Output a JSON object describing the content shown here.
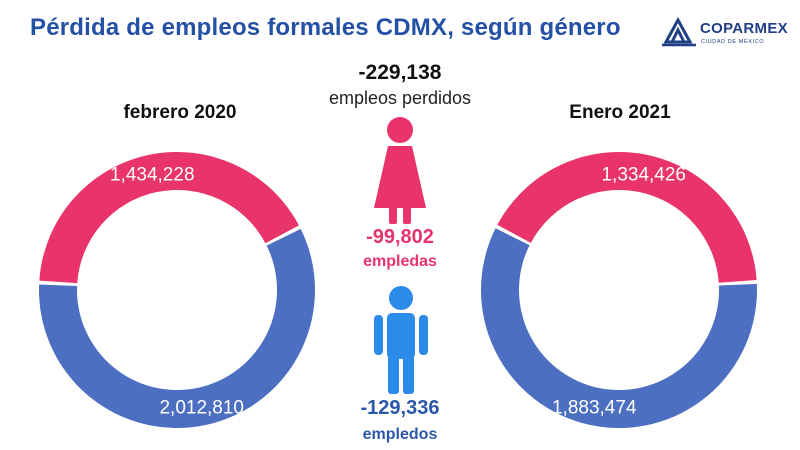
{
  "title": "Pérdida de empleos formales CDMX, según género",
  "logo": {
    "brand": "COPARMEX",
    "subtitle": "CIUDAD DE MÉXICO"
  },
  "total": {
    "value": "-229,138",
    "label": "empleos perdidos"
  },
  "women": {
    "value": "-99,802",
    "label": "empledas"
  },
  "men": {
    "value": "-129,336",
    "label": "empledos"
  },
  "colors": {
    "women": "#e8336b",
    "men": "#4d6fc1",
    "title": "#2450a6"
  },
  "icons": [
    "woman-icon",
    "man-icon"
  ],
  "chart_data": [
    {
      "type": "pie",
      "donut": true,
      "title": "febrero 2020",
      "categories": [
        "Mujeres",
        "Hombres"
      ],
      "values": [
        1434228,
        2012810
      ],
      "labels": [
        "1,434,228",
        "2,012,810"
      ],
      "colors": [
        "#e8336b",
        "#4d6fc1"
      ]
    },
    {
      "type": "pie",
      "donut": true,
      "title": "Enero 2021",
      "categories": [
        "Mujeres",
        "Hombres"
      ],
      "values": [
        1334426,
        1883474
      ],
      "labels": [
        "1,334,426",
        "1,883,474"
      ],
      "colors": [
        "#e8336b",
        "#4d6fc1"
      ]
    }
  ]
}
